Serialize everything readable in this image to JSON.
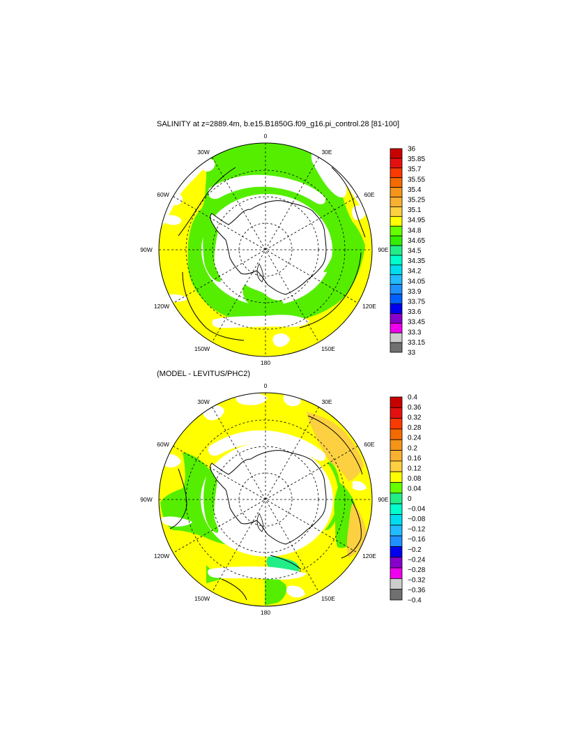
{
  "figure": {
    "panel1_title": "SALINITY at z=2889.4m, b.e15.B1850G.f09_g16.pi_control.28 [81-100]",
    "panel2_title": "(MODEL - LEVITUS/PHC2)"
  },
  "map": {
    "projection": "south-polar stereographic",
    "longitude_labels": [
      "0",
      "30E",
      "60E",
      "90E",
      "120E",
      "150E",
      "180",
      "150W",
      "120W",
      "90W",
      "60W",
      "30W"
    ]
  },
  "colorbar1": {
    "labels": [
      "36",
      "35.85",
      "35.7",
      "35.55",
      "35.4",
      "35.25",
      "35.1",
      "34.95",
      "34.8",
      "34.65",
      "34.5",
      "34.35",
      "34.2",
      "34.05",
      "33.9",
      "33.75",
      "33.6",
      "33.45",
      "33.3",
      "33.15",
      "33"
    ],
    "colors": [
      "#c80000",
      "#e41010",
      "#fa3a00",
      "#f46a00",
      "#f49418",
      "#f8b030",
      "#fcd040",
      "#ffff00",
      "#66ff00",
      "#33ee00",
      "#22ee88",
      "#00ffcc",
      "#00ddee",
      "#22bbff",
      "#1e90ff",
      "#0060ff",
      "#0000ee",
      "#8800cc",
      "#ee00ee",
      "#cccccc",
      "#707070"
    ]
  },
  "colorbar2": {
    "labels": [
      "0.4",
      "0.36",
      "0.32",
      "0.28",
      "0.24",
      "0.2",
      "0.16",
      "0.12",
      "0.08",
      "0.04",
      "0",
      "−0.04",
      "−0.08",
      "−0.12",
      "−0.16",
      "−0.2",
      "−0.24",
      "−0.28",
      "−0.32",
      "−0.36",
      "−0.4"
    ],
    "colors": [
      "#c80000",
      "#e41010",
      "#fa3a00",
      "#f46a00",
      "#f49418",
      "#f8b030",
      "#fcd040",
      "#ffff00",
      "#66ff00",
      "#22ee88",
      "#00ffcc",
      "#00ddee",
      "#22bbff",
      "#1e90ff",
      "#0000ee",
      "#8800cc",
      "#ee00ee",
      "#cccccc",
      "#707070"
    ]
  }
}
